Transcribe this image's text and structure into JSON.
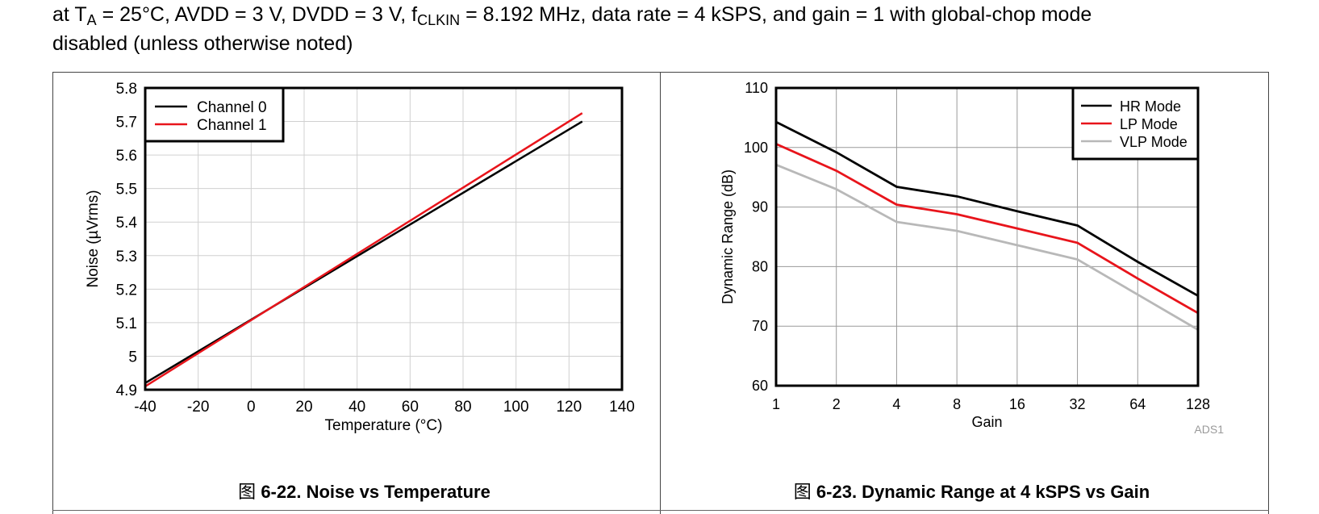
{
  "header": {
    "pre": "at T",
    "sub_a": "A",
    "mid": " = 25°C, AVDD = 3 V, DVDD = 3 V, f",
    "sub_clk": "CLKIN",
    "post": " = 8.192 MHz, data rate = 4 kSPS, and gain = 1 with global-chop mode",
    "line2": "disabled (unless otherwise noted)"
  },
  "figures": [
    {
      "prefix": "图",
      "title": "6-22. Noise vs Temperature"
    },
    {
      "prefix": "图",
      "title": "6-23. Dynamic Range at 4 kSPS vs Gain"
    }
  ],
  "colors": {
    "black": "#000000",
    "red": "#e8141b",
    "gray": "#b8b8b8",
    "grid": "#d0d0d0"
  },
  "chart_data": [
    {
      "type": "line",
      "xlabel": "Temperature (°C)",
      "ylabel": "Noise (µVrms)",
      "xlim": [
        -40,
        140
      ],
      "ylim": [
        4.9,
        5.8
      ],
      "xticks": [
        -40,
        -20,
        0,
        20,
        40,
        60,
        80,
        100,
        120,
        140
      ],
      "yticks": [
        4.9,
        5,
        5.1,
        5.2,
        5.3,
        5.4,
        5.5,
        5.6,
        5.7,
        5.8
      ],
      "ytick_labels": [
        "4.9",
        "5",
        "5.1",
        "5.2",
        "5.3",
        "5.4",
        "5.5",
        "5.6",
        "5.7",
        "5.8"
      ],
      "grid": true,
      "legend_position": "top-left",
      "series": [
        {
          "name": "Channel 0",
          "color": "#000000",
          "x": [
            -40,
            125
          ],
          "y": [
            4.92,
            5.7
          ]
        },
        {
          "name": "Channel 1",
          "color": "#e8141b",
          "x": [
            -40,
            125
          ],
          "y": [
            4.91,
            5.725
          ]
        }
      ]
    },
    {
      "type": "line",
      "xlabel": "Gain",
      "ylabel": "Dynamic Range (dB)",
      "x_scale": "log2",
      "categories": [
        "1",
        "2",
        "4",
        "8",
        "16",
        "32",
        "64",
        "128"
      ],
      "ylim": [
        60,
        110
      ],
      "yticks": [
        60,
        70,
        80,
        90,
        100,
        110
      ],
      "grid": true,
      "legend_position": "top-right",
      "annotation": "ADS1",
      "series": [
        {
          "name": "HR Mode",
          "color": "#000000",
          "x": [
            1,
            2,
            4,
            8,
            16,
            32,
            64,
            128
          ],
          "y": [
            104.3,
            99.2,
            93.4,
            91.8,
            89.3,
            86.9,
            80.8,
            75.1
          ]
        },
        {
          "name": "LP Mode",
          "color": "#e8141b",
          "x": [
            1,
            2,
            4,
            8,
            16,
            32,
            64,
            128
          ],
          "y": [
            100.6,
            96.1,
            90.4,
            88.8,
            86.4,
            84.0,
            78.0,
            72.2
          ]
        },
        {
          "name": "VLP Mode",
          "color": "#b8b8b8",
          "x": [
            1,
            2,
            4,
            8,
            16,
            32,
            64,
            128
          ],
          "y": [
            97.1,
            93.0,
            87.5,
            86.0,
            83.6,
            81.2,
            75.3,
            69.4
          ]
        }
      ]
    }
  ]
}
